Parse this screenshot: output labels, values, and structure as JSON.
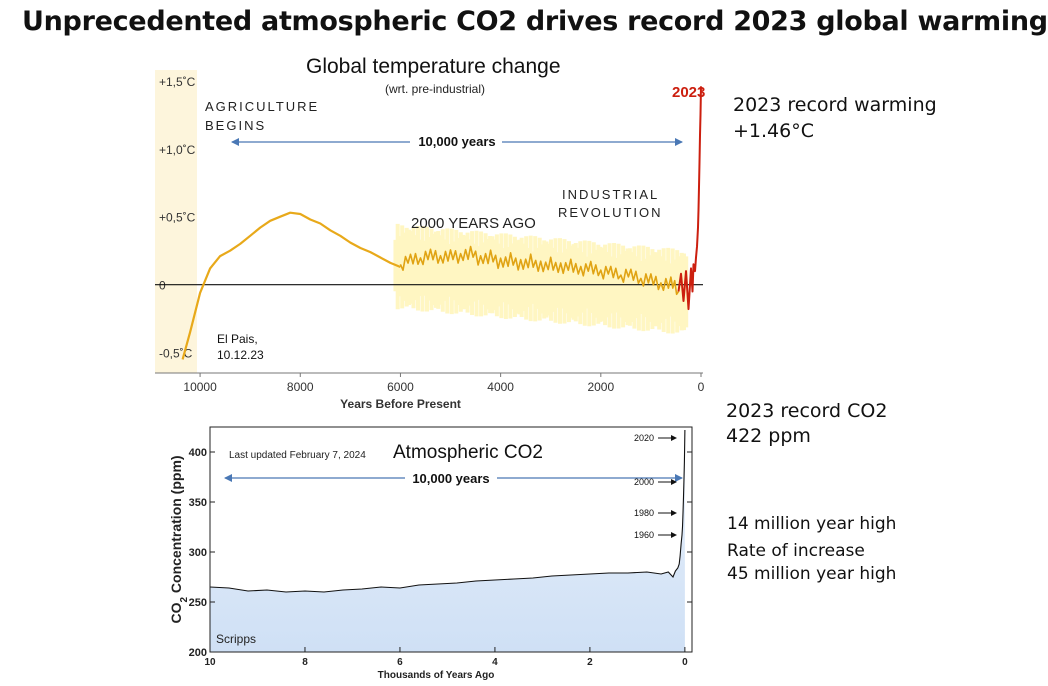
{
  "main_title": "Unprecedented atmospheric CO2 drives record 2023 global warming",
  "colors": {
    "temp_early": "#e8a91a",
    "temp_late": "#cc1f0f",
    "uncertainty": "#fff6c2",
    "co2_line": "#111111",
    "co2_fill": "#cfe0f5",
    "arrow": "#4a78b5"
  },
  "side_notes": {
    "temp_record": [
      "2023 record warming",
      "+1.46°C"
    ],
    "co2_record": [
      "2023 record CO2",
      "422 ppm"
    ],
    "co2_extra": [
      "14 million year high",
      "Rate of increase",
      "45 million year high"
    ]
  },
  "chart_data": [
    {
      "type": "line",
      "title": "Global temperature change",
      "subtitle": "(wrt. pre-industrial)",
      "xlabel": "Years Before Present",
      "ylabel": "",
      "x_ticks": [
        10000,
        8000,
        6000,
        4000,
        2000,
        0
      ],
      "x_tick_labels": [
        "10000",
        "8000",
        "6000",
        "4000",
        "2000",
        "0"
      ],
      "xlim": [
        10900,
        -40
      ],
      "y_ticks": [
        1.5,
        1.0,
        0.5,
        0,
        -0.5
      ],
      "y_tick_labels": [
        "+1,5˚C",
        "+1,0˚C",
        "+0,5˚C",
        "0",
        "-0,5˚C"
      ],
      "ylim": [
        -0.65,
        1.58
      ],
      "annotations": {
        "agriculture": [
          "AGRICULTURE",
          "BEGINS"
        ],
        "span": "10,000 years",
        "two_thousand": "2000 YEARS AGO",
        "industrial": [
          "INDUSTRIAL",
          "REVOLUTION"
        ],
        "year_2023": "2023",
        "source": [
          "El Pais,",
          "10.12.23"
        ]
      },
      "series": [
        {
          "name": "reconstruction",
          "x": [
            10350,
            10200,
            10000,
            9800,
            9600,
            9400,
            9200,
            9000,
            8800,
            8600,
            8400,
            8200,
            8000,
            7800,
            7600,
            7400,
            7200,
            7000,
            6800,
            6600,
            6400,
            6200,
            6000
          ],
          "y": [
            -0.55,
            -0.35,
            -0.06,
            0.12,
            0.21,
            0.25,
            0.3,
            0.36,
            0.42,
            0.47,
            0.5,
            0.53,
            0.52,
            0.48,
            0.45,
            0.4,
            0.36,
            0.31,
            0.27,
            0.24,
            0.2,
            0.16,
            0.13
          ]
        },
        {
          "name": "holocene_late",
          "x": [
            6000,
            5800,
            5600,
            5400,
            5200,
            5000,
            4800,
            4600,
            4400,
            4200,
            4000,
            3800,
            3600,
            3400,
            3200,
            3000,
            2800,
            2600,
            2400,
            2200,
            2000,
            1800,
            1600,
            1400,
            1200,
            1000,
            800,
            600,
            450
          ],
          "y": [
            0.13,
            0.2,
            0.17,
            0.23,
            0.18,
            0.22,
            0.19,
            0.24,
            0.17,
            0.21,
            0.15,
            0.19,
            0.14,
            0.18,
            0.13,
            0.16,
            0.12,
            0.15,
            0.1,
            0.14,
            0.08,
            0.11,
            0.05,
            0.09,
            0.02,
            0.05,
            -0.02,
            0.02,
            -0.05
          ]
        },
        {
          "name": "instrumental",
          "x": [
            450,
            400,
            350,
            300,
            250,
            200,
            170,
            150,
            120,
            100,
            80,
            60,
            50,
            40,
            30,
            20,
            10,
            0
          ],
          "y": [
            -0.05,
            0.08,
            -0.12,
            0.1,
            -0.18,
            0.12,
            -0.05,
            0.15,
            0.1,
            0.2,
            0.28,
            0.42,
            0.55,
            0.72,
            0.9,
            1.1,
            1.25,
            1.46
          ]
        }
      ]
    },
    {
      "type": "area",
      "title": "Atmospheric CO2",
      "note": "Last updated February 7, 2024",
      "source": "Scripps",
      "span": "10,000 years",
      "xlabel": "Thousands of Years Ago",
      "ylabel_parts": [
        "CO",
        "2",
        " Concentration (ppm)"
      ],
      "x_ticks": [
        10,
        8,
        6,
        4,
        2,
        0
      ],
      "xlim": [
        10,
        -0.15
      ],
      "y_ticks": [
        200,
        250,
        300,
        350,
        400
      ],
      "ylim": [
        200,
        425
      ],
      "year_markers": [
        {
          "label": "2020",
          "value": 414
        },
        {
          "label": "2000",
          "value": 370
        },
        {
          "label": "1980",
          "value": 339
        },
        {
          "label": "1960",
          "value": 317
        }
      ],
      "series": [
        {
          "name": "CO2",
          "x": [
            10,
            9.6,
            9.2,
            8.8,
            8.4,
            8.0,
            7.6,
            7.2,
            6.8,
            6.4,
            6.0,
            5.6,
            5.2,
            4.8,
            4.4,
            4.0,
            3.6,
            3.2,
            2.8,
            2.4,
            2.0,
            1.6,
            1.2,
            0.8,
            0.5,
            0.35,
            0.25,
            0.2,
            0.15,
            0.12,
            0.1,
            0.08,
            0.06,
            0.05,
            0.04,
            0.03,
            0.02,
            0.01,
            0
          ],
          "y": [
            265,
            264,
            261,
            262,
            260,
            261,
            260,
            262,
            263,
            265,
            264,
            267,
            268,
            269,
            271,
            272,
            273,
            274,
            276,
            277,
            278,
            279,
            279,
            280,
            278,
            280,
            275,
            281,
            284,
            288,
            296,
            308,
            317,
            325,
            339,
            355,
            370,
            390,
            422
          ]
        }
      ]
    }
  ]
}
